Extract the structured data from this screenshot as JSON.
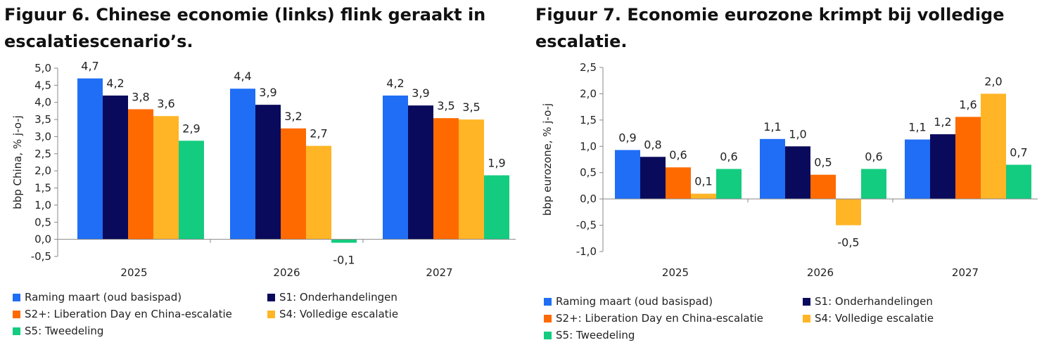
{
  "series_meta": [
    {
      "name": "Raming maart (oud basispad)",
      "color": "#1f6ef5"
    },
    {
      "name": "S1: Onderhandelingen",
      "color": "#0a0a5c"
    },
    {
      "name": "S2+: Liberation Day en China-escalatie",
      "color": "#ff6a00"
    },
    {
      "name": "S4: Volledige escalatie",
      "color": "#ffb526"
    },
    {
      "name": "S5: Tweedeling",
      "color": "#14cc7f"
    }
  ],
  "chart_data": [
    {
      "type": "bar",
      "title": "Figuur 6. Chinese economie (links) flink geraakt in escalatiescenario’s.",
      "xlabel": "",
      "ylabel": "bbp China, % j-o-j",
      "categories": [
        "2025",
        "2026",
        "2027"
      ],
      "ylim": [
        -0.5,
        5.0
      ],
      "yticks": [
        -0.5,
        0.0,
        0.5,
        1.0,
        1.5,
        2.0,
        2.5,
        3.0,
        3.5,
        4.0,
        4.5,
        5.0
      ],
      "ytick_labels": [
        "-0,5",
        "0,0",
        "0,5",
        "1,0",
        "1,5",
        "2,0",
        "2,5",
        "3,0",
        "3,5",
        "4,0",
        "4,5",
        "5,0"
      ],
      "series": [
        {
          "name": "Raming maart (oud basispad)",
          "values": [
            4.7,
            4.4,
            4.2
          ],
          "labels": [
            "4,7",
            "4,4",
            "4,2"
          ]
        },
        {
          "name": "S1: Onderhandelingen",
          "values": [
            4.2,
            3.93,
            3.91
          ],
          "labels": [
            "4,2",
            "3,9",
            "3,9"
          ]
        },
        {
          "name": "S2+: Liberation Day en China-escalatie",
          "values": [
            3.8,
            3.24,
            3.54
          ],
          "labels": [
            "3,8",
            "3,2",
            "3,5"
          ]
        },
        {
          "name": "S4: Volledige escalatie",
          "values": [
            3.6,
            2.73,
            3.5
          ],
          "labels": [
            "3,6",
            "2,7",
            "3,5"
          ]
        },
        {
          "name": "S5: Tweedeling",
          "values": [
            2.88,
            -0.1,
            1.87
          ],
          "labels": [
            "2,9",
            "-0,1",
            "1,9"
          ]
        }
      ],
      "legend": "bottom"
    },
    {
      "type": "bar",
      "title": "Figuur 7. Economie eurozone krimpt bij volledige escalatie.",
      "xlabel": "",
      "ylabel": "bbp eurozone, % j-o-j",
      "categories": [
        "2025",
        "2026",
        "2027"
      ],
      "ylim": [
        -1.0,
        2.5
      ],
      "yticks": [
        -1.0,
        -0.5,
        0.0,
        0.5,
        1.0,
        1.5,
        2.0,
        2.5
      ],
      "ytick_labels": [
        "-1,0",
        "-0,5",
        "0,0",
        "0,5",
        "1,0",
        "1,5",
        "2,0",
        "2,5"
      ],
      "series": [
        {
          "name": "Raming maart (oud basispad)",
          "values": [
            0.93,
            1.14,
            1.13
          ],
          "labels": [
            "0,9",
            "1,1",
            "1,1"
          ]
        },
        {
          "name": "S1: Onderhandelingen",
          "values": [
            0.8,
            1.0,
            1.23
          ],
          "labels": [
            "0,8",
            "1,0",
            "1,2"
          ]
        },
        {
          "name": "S2+: Liberation Day en China-escalatie",
          "values": [
            0.6,
            0.46,
            1.56
          ],
          "labels": [
            "0,6",
            "0,5",
            "1,6"
          ]
        },
        {
          "name": "S4: Volledige escalatie",
          "values": [
            0.1,
            -0.5,
            2.0
          ],
          "labels": [
            "0,1",
            "-0,5",
            "2,0"
          ]
        },
        {
          "name": "S5: Tweedeling",
          "values": [
            0.57,
            0.57,
            0.65
          ],
          "labels": [
            "0,6",
            "0,6",
            "0,7"
          ]
        }
      ],
      "legend": "bottom"
    }
  ]
}
